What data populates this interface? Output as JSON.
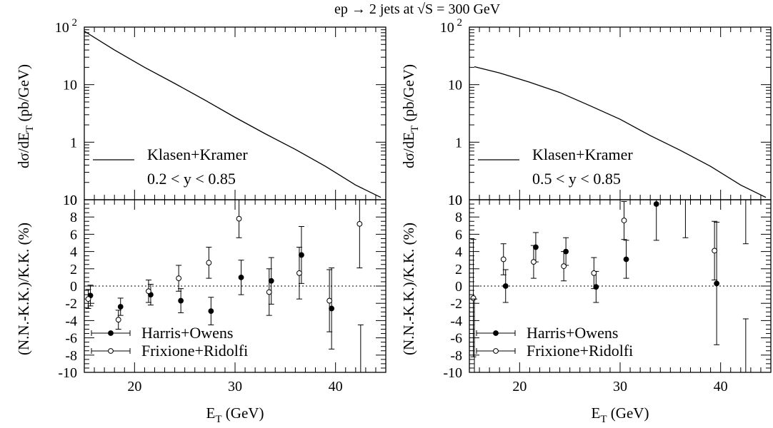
{
  "title": "ep → 2 jets at √S = 300 GeV",
  "chart_data": [
    {
      "type": "line",
      "panel": "top-left",
      "ylabel": "dσ/dE_T (pb/GeV)",
      "yscale": "log",
      "ylim": [
        0.1,
        100
      ],
      "xlim": [
        15,
        45
      ],
      "y_tick_labels": [
        "10 2",
        "10",
        "1",
        "10"
      ],
      "series": [
        {
          "name": "Klasen+Kramer",
          "x": [
            15,
            18,
            21,
            24,
            27,
            30,
            33,
            36,
            39,
            42,
            44.5
          ],
          "y": [
            85,
            40,
            20,
            10.5,
            5.4,
            2.7,
            1.4,
            0.75,
            0.38,
            0.18,
            0.11
          ]
        }
      ],
      "legend_position": "bottom-left",
      "annotation": "0.2 < y < 0.85"
    },
    {
      "type": "scatter",
      "panel": "bottom-left",
      "ylabel": "(N.N.-K.K.)/K.K. (%)",
      "xlabel": "E_T (GeV)",
      "xlim": [
        15,
        45
      ],
      "ylim": [
        -10,
        10
      ],
      "x_tick_labels": [
        "20",
        "30",
        "40"
      ],
      "y_tick_labels": [
        "10",
        "8",
        "6",
        "4",
        "2",
        "0",
        "-2",
        "-4",
        "-6",
        "-8",
        "-10"
      ],
      "reference_line": 0,
      "series": [
        {
          "name": "Harris+Owens",
          "marker": "filled-circle",
          "x": [
            15.5,
            18.5,
            21.5,
            24.5,
            27.5,
            30.5,
            33.5,
            36.5,
            39.5
          ],
          "y": [
            -1.1,
            -2.4,
            -1.0,
            -1.7,
            -2.9,
            1.0,
            0.6,
            3.6,
            -2.6
          ],
          "yerr": [
            1.2,
            1.0,
            1.2,
            1.4,
            1.6,
            2.0,
            2.7,
            3.3,
            4.7
          ]
        },
        {
          "name": "Frixione+Ridolfi",
          "marker": "open-circle",
          "x": [
            15.5,
            18.5,
            21.5,
            24.5,
            27.5,
            30.5,
            33.5,
            36.5,
            39.5,
            42.5
          ],
          "y": [
            -1.5,
            -3.9,
            -0.6,
            0.9,
            2.7,
            7.8,
            -0.7,
            1.5,
            -1.7,
            7.2
          ],
          "yerr": [
            1.1,
            1.1,
            1.3,
            1.5,
            1.8,
            2.2,
            2.7,
            3.0,
            3.6,
            5.1
          ]
        }
      ],
      "extra_error_bar": {
        "x": 42.5,
        "ylow": -10,
        "yhigh": -4.5
      },
      "legend_position": "bottom-left"
    },
    {
      "type": "line",
      "panel": "top-right",
      "ylabel": "dσ/dE_T (pb/GeV)",
      "yscale": "log",
      "ylim": [
        0.1,
        100
      ],
      "xlim": [
        15,
        45
      ],
      "y_tick_labels": [
        "10 2",
        "10",
        "1",
        "10"
      ],
      "series": [
        {
          "name": "Klasen+Kramer",
          "x": [
            15.5,
            18,
            21,
            24,
            27,
            30,
            33,
            36,
            39,
            42,
            44.5
          ],
          "y": [
            20.5,
            16,
            11,
            7.3,
            4.3,
            2.5,
            1.3,
            0.72,
            0.38,
            0.18,
            0.11
          ]
        }
      ],
      "legend_position": "bottom-left",
      "annotation": "0.5 < y < 0.85"
    },
    {
      "type": "scatter",
      "panel": "bottom-right",
      "ylabel": "(N.N.-K.K.)/K.K. (%)",
      "xlabel": "E_T (GeV)",
      "xlim": [
        15,
        45
      ],
      "ylim": [
        -10,
        10
      ],
      "x_tick_labels": [
        "20",
        "30",
        "40"
      ],
      "y_tick_labels": [
        "10",
        "8",
        "6",
        "4",
        "2",
        "0",
        "-2",
        "-4",
        "-6",
        "-8",
        "-10"
      ],
      "reference_line": 0,
      "series": [
        {
          "name": "Harris+Owens",
          "marker": "filled-circle",
          "x": [
            18.5,
            21.5,
            24.5,
            27.5,
            30.5,
            33.5,
            39.5
          ],
          "y": [
            0.0,
            4.5,
            4.0,
            -0.1,
            3.1,
            9.5,
            0.3
          ],
          "yerr": [
            1.9,
            1.7,
            1.6,
            1.8,
            2.2,
            4.2,
            7.1
          ]
        },
        {
          "name": "Frixione+Ridolfi",
          "marker": "open-circle",
          "x": [
            15.5,
            18.5,
            21.5,
            24.5,
            27.5,
            30.5,
            39.5
          ],
          "y": [
            -1.4,
            3.1,
            2.8,
            2.3,
            1.5,
            7.6,
            4.1
          ],
          "yerr": [
            6.8,
            1.8,
            1.9,
            1.7,
            1.8,
            2.2,
            3.4
          ]
        }
      ],
      "extra_error_bars": [
        {
          "x": 15.5,
          "ylow": -10,
          "yhigh": -1.5
        },
        {
          "x": 36.5,
          "ylow": 5.6,
          "yhigh": 10
        },
        {
          "x": 42.5,
          "ylow": 4.9,
          "yhigh": 10
        },
        {
          "x": 42.5,
          "ylow": -10,
          "yhigh": -3.8
        }
      ],
      "legend_position": "bottom-left"
    }
  ]
}
